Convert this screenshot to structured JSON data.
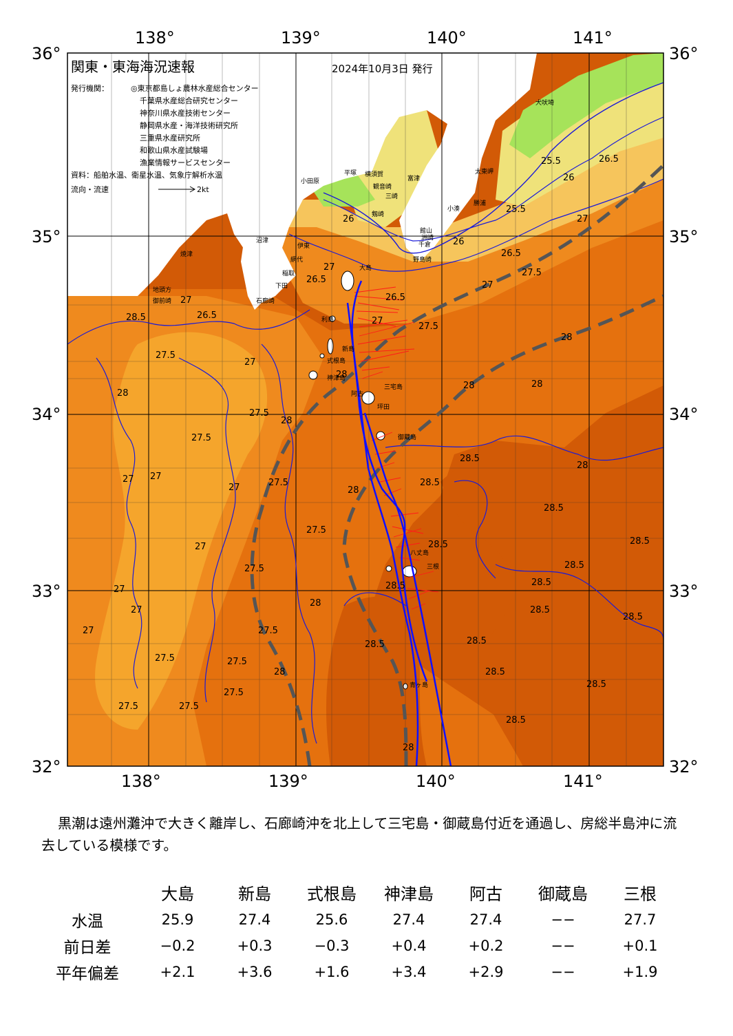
{
  "header": {
    "title": "関東・東海海況速報",
    "date": "2024年10月3日 発行",
    "issuer_label": "発行機関：",
    "issuers": [
      "◎東京都島しょ農林水産総合センター",
      "千葉県水産総合研究センター",
      "神奈川県水産技術センター",
      "静岡県水産・海洋技術研究所",
      "三重県水産研究所",
      "和歌山県水産試験場",
      "漁業情報サービスセンター"
    ],
    "source": "資料：船舶水温、衛星水温、気象庁解析水温",
    "flow_legend": "流向・流速",
    "flow_scale": "2kt"
  },
  "map": {
    "lon_labels": [
      "138°",
      "139°",
      "140°",
      "141°"
    ],
    "lat_labels": [
      "36°",
      "35°",
      "34°",
      "33°",
      "32°"
    ],
    "colors": {
      "sea_26_5": "#f6c55c",
      "sea_27": "#f5a52c",
      "sea_27_5": "#ef8a1e",
      "sea_28": "#e5710e",
      "sea_28_5": "#d25a06",
      "sea_cool": "#efe27a",
      "sea_cold": "#a6e35a",
      "land": "#ffffff",
      "kuroshio_axis": "#1010ff",
      "mean_path": "#555555",
      "current_vector": "#ff1a1a"
    },
    "isotherm_labels": [
      "26",
      "26",
      "26",
      "26.5",
      "25.5",
      "25.5",
      "26.5",
      "27",
      "27",
      "27.5",
      "27.5",
      "26.5",
      "27",
      "26.5",
      "27",
      "27.5",
      "28",
      "28",
      "28",
      "28",
      "28",
      "28.5",
      "28.5",
      "28.5",
      "28",
      "27.5",
      "27.5",
      "27",
      "27.5",
      "28",
      "28",
      "28",
      "28.5",
      "27",
      "27",
      "27",
      "27",
      "27",
      "27.5",
      "27",
      "27.5",
      "27.5",
      "27.5",
      "27.5",
      "27.5",
      "27.5",
      "27.5",
      "28",
      "28.5",
      "28.5",
      "28.5",
      "28.5",
      "28.5",
      "28.5",
      "28.5",
      "28.5",
      "28.5",
      "28.5",
      "28.5",
      "28",
      "28.5",
      "27",
      "26.5",
      "27"
    ],
    "places": [
      "犬吠埼",
      "太東岬",
      "勝浦",
      "小湊",
      "洲崎",
      "千倉",
      "野島崎",
      "館山",
      "富津",
      "観音崎",
      "剱崎",
      "三崎",
      "横須賀",
      "平塚",
      "小田原",
      "大島",
      "利島",
      "新島",
      "式根島",
      "神津島",
      "三宅島",
      "阿古",
      "坪田",
      "御蔵島",
      "八丈島",
      "三根",
      "青ヶ島",
      "石廊崎",
      "下田",
      "稲取",
      "伊東",
      "網代",
      "沼津",
      "焼津",
      "御前崎",
      "地頭方"
    ]
  },
  "summary": "黒潮は遠州灘沖で大きく離岸し、石廊崎沖を北上して三宅島・御蔵島付近を通過し、房総半島沖に流去している模様です。",
  "table": {
    "columns": [
      "大島",
      "新島",
      "式根島",
      "神津島",
      "阿古",
      "御蔵島",
      "三根"
    ],
    "rows": [
      {
        "label": "水温",
        "values": [
          "25.9",
          "27.4",
          "25.6",
          "27.4",
          "27.4",
          "−−",
          "27.7"
        ]
      },
      {
        "label": "前日差",
        "values": [
          "−0.2",
          "+0.3",
          "−0.3",
          "+0.4",
          "+0.2",
          "−−",
          "+0.1"
        ]
      },
      {
        "label": "平年偏差",
        "values": [
          "+2.1",
          "+3.6",
          "+1.6",
          "+3.4",
          "+2.9",
          "−−",
          "+1.9"
        ]
      }
    ]
  }
}
